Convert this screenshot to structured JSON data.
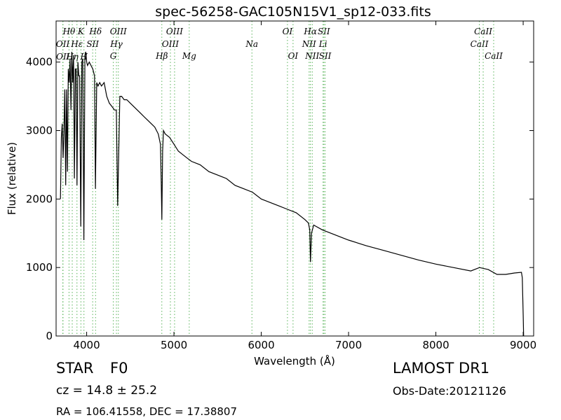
{
  "chart_data": {
    "type": "line",
    "title": "spec-56258-GAC105N15V1_sp12-033.fits",
    "xlabel": "Wavelength (Å)",
    "ylabel": "Flux (relative)",
    "xlim": [
      3650,
      9120
    ],
    "ylim": [
      0,
      4600
    ],
    "xticks": [
      4000,
      5000,
      6000,
      7000,
      8000,
      9000
    ],
    "yticks": [
      0,
      1000,
      2000,
      3000,
      4000
    ],
    "grid": false,
    "line_color": "#000000",
    "marker_color": "#59b359",
    "series": [
      {
        "x": [
          3700,
          3710,
          3720,
          3730,
          3740,
          3750,
          3760,
          3770,
          3780,
          3790,
          3800,
          3810,
          3820,
          3830,
          3840,
          3850,
          3860,
          3870,
          3880,
          3889,
          3900,
          3910,
          3920,
          3933,
          3945,
          3955,
          3968,
          3980,
          3990,
          4000,
          4010,
          4030,
          4050,
          4070,
          4090,
          4101,
          4115,
          4130,
          4150,
          4170,
          4200,
          4230,
          4260,
          4290,
          4320,
          4340,
          4355,
          4380,
          4400,
          4430,
          4460,
          4500,
          4540,
          4580,
          4620,
          4660,
          4700,
          4740,
          4780,
          4820,
          4845,
          4855,
          4861,
          4870,
          4880,
          4900,
          4950,
          5000,
          5050,
          5100,
          5150,
          5200,
          5300,
          5400,
          5500,
          5600,
          5700,
          5800,
          5900,
          6000,
          6100,
          6200,
          6300,
          6400,
          6500,
          6540,
          6555,
          6563,
          6575,
          6600,
          6700,
          6800,
          6900,
          7000,
          7200,
          7400,
          7600,
          7800,
          8000,
          8200,
          8400,
          8500,
          8600,
          8700,
          8800,
          8900,
          8980,
          8990,
          9000,
          9005
        ],
        "values": [
          2000,
          2900,
          3100,
          2600,
          3000,
          3600,
          2200,
          3600,
          2400,
          3900,
          3700,
          4050,
          3300,
          4150,
          3700,
          4100,
          2300,
          3900,
          3900,
          2200,
          4000,
          3800,
          3800,
          1600,
          4000,
          4050,
          1400,
          4100,
          4150,
          4000,
          3950,
          4000,
          3950,
          3900,
          3800,
          2150,
          3700,
          3650,
          3700,
          3650,
          3700,
          3500,
          3400,
          3350,
          3300,
          3300,
          1900,
          3500,
          3500,
          3450,
          3450,
          3400,
          3350,
          3300,
          3250,
          3200,
          3150,
          3100,
          3050,
          2950,
          2800,
          2200,
          1700,
          2700,
          3000,
          2950,
          2900,
          2800,
          2700,
          2650,
          2600,
          2550,
          2500,
          2400,
          2350,
          2300,
          2200,
          2150,
          2100,
          2000,
          1950,
          1900,
          1850,
          1800,
          1700,
          1650,
          1550,
          1080,
          1500,
          1620,
          1550,
          1500,
          1450,
          1400,
          1320,
          1250,
          1180,
          1110,
          1050,
          1000,
          950,
          1000,
          970,
          900,
          900,
          920,
          930,
          850,
          300,
          0
        ]
      }
    ],
    "line_marks": [
      {
        "label": "OII",
        "x": 3727,
        "row": 2
      },
      {
        "label": "OII",
        "x": 3729,
        "row": 3
      },
      {
        "label": "Hθ",
        "x": 3798,
        "row": 1
      },
      {
        "label": "Hη",
        "x": 3835,
        "row": 3
      },
      {
        "label": "Hε",
        "x": 3889,
        "row": 2
      },
      {
        "label": "K",
        "x": 3934,
        "row": 1
      },
      {
        "label": "H",
        "x": 3969,
        "row": 3
      },
      {
        "label": "SII",
        "x": 4069,
        "row": 2
      },
      {
        "label": "Hδ",
        "x": 4102,
        "row": 1
      },
      {
        "label": "G",
        "x": 4305,
        "row": 4
      },
      {
        "label": "Hγ",
        "x": 4341,
        "row": 2
      },
      {
        "label": "OIII",
        "x": 4363,
        "row": 1
      },
      {
        "label": "Hβ",
        "x": 4861,
        "row": 4
      },
      {
        "label": "OIII",
        "x": 4959,
        "row": 2
      },
      {
        "label": "OIII",
        "x": 5007,
        "row": 1
      },
      {
        "label": "Mg",
        "x": 5175,
        "row": 4
      },
      {
        "label": "Na",
        "x": 5893,
        "row": 2
      },
      {
        "label": "OI",
        "x": 6300,
        "row": 1
      },
      {
        "label": "OI",
        "x": 6364,
        "row": 4
      },
      {
        "label": "NII",
        "x": 6548,
        "row": 2
      },
      {
        "label": "Hα",
        "x": 6563,
        "row": 1
      },
      {
        "label": "NII",
        "x": 6584,
        "row": 4
      },
      {
        "label": "SII",
        "x": 6717,
        "row": 1
      },
      {
        "label": "Li",
        "x": 6708,
        "row": 2
      },
      {
        "label": "SII",
        "x": 6731,
        "row": 4
      },
      {
        "label": "CaII",
        "x": 8498,
        "row": 2
      },
      {
        "label": "CaII",
        "x": 8542,
        "row": 1
      },
      {
        "label": "CaII",
        "x": 8662,
        "row": 4
      }
    ]
  },
  "info": {
    "object_class": "STAR",
    "subclass": "F0",
    "cz_text": "cz = 14.8 ± 25.2",
    "radec_text": "RA = 106.41558, DEC = 17.38807",
    "survey": "LAMOST DR1",
    "obs_date": "Obs-Date:20121126"
  }
}
